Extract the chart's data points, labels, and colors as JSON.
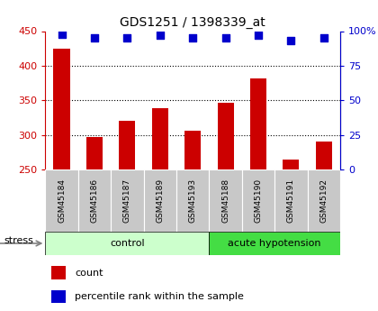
{
  "title": "GDS1251 / 1398339_at",
  "samples": [
    "GSM45184",
    "GSM45186",
    "GSM45187",
    "GSM45189",
    "GSM45193",
    "GSM45188",
    "GSM45190",
    "GSM45191",
    "GSM45192"
  ],
  "counts": [
    424,
    297,
    320,
    339,
    306,
    346,
    381,
    264,
    291
  ],
  "percentiles": [
    98,
    95,
    95,
    97,
    95,
    95,
    97,
    93,
    95
  ],
  "groups": [
    "control",
    "control",
    "control",
    "control",
    "control",
    "acute hypotension",
    "acute hypotension",
    "acute hypotension",
    "acute hypotension"
  ],
  "bar_color": "#cc0000",
  "dot_color": "#0000cc",
  "ylim_left": [
    250,
    450
  ],
  "ylim_right": [
    0,
    100
  ],
  "yticks_left": [
    250,
    300,
    350,
    400,
    450
  ],
  "yticks_right": [
    0,
    25,
    50,
    75,
    100
  ],
  "grid_vals": [
    300,
    350,
    400
  ],
  "control_color": "#ccffcc",
  "hypotension_color": "#44dd44",
  "xlabel_color": "#cc0000",
  "dot_color_str": "#0000cc",
  "stress_label": "stress",
  "legend_count": "count",
  "legend_percentile": "percentile rank within the sample",
  "tick_label_bg": "#c8c8c8",
  "bar_width": 0.5
}
